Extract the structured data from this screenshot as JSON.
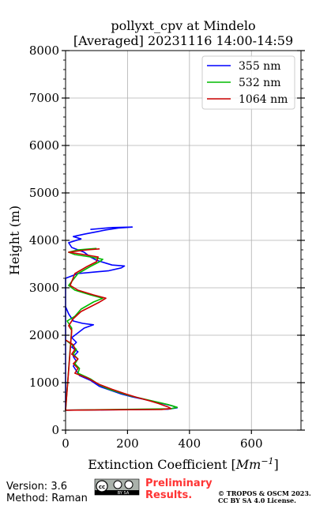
{
  "chart_data": {
    "type": "line",
    "title_line1": "pollyxt_cpv at Mindelo",
    "title_line2": "[Averaged] 20231116 14:00-14:59",
    "xlabel": "Extinction Coefficient [",
    "xlabel_unit": "Mm",
    "xlabel_exp": "−1",
    "xlabel_close": "]",
    "ylabel": "Height (m)",
    "xlim": [
      0,
      760
    ],
    "ylim": [
      0,
      8000
    ],
    "xticks": [
      0,
      200,
      400,
      600
    ],
    "yticks": [
      0,
      1000,
      2000,
      3000,
      4000,
      5000,
      6000,
      7000,
      8000
    ],
    "grid": true,
    "legend_position": "top-right",
    "series": [
      {
        "name": "355 nm",
        "color": "#0000ff",
        "points": [
          [
            0,
            2600
          ],
          [
            10,
            2450
          ],
          [
            25,
            2300
          ],
          [
            55,
            2250
          ],
          [
            90,
            2220
          ],
          [
            60,
            2150
          ],
          [
            40,
            2050
          ],
          [
            20,
            1950
          ],
          [
            35,
            1850
          ],
          [
            20,
            1750
          ],
          [
            40,
            1650
          ],
          [
            25,
            1550
          ],
          [
            35,
            1450
          ],
          [
            25,
            1350
          ],
          [
            35,
            1250
          ],
          [
            45,
            1150
          ],
          [
            80,
            1050
          ],
          [
            110,
            920
          ],
          [
            150,
            830
          ],
          [
            180,
            760
          ],
          [
            215,
            700
          ],
          [
            260,
            640
          ],
          [
            300,
            580
          ],
          [
            345,
            510
          ],
          [
            360,
            470
          ],
          [
            330,
            440
          ],
          [
            0,
            420
          ],
          [
            0,
            3200
          ],
          [
            40,
            3300
          ],
          [
            90,
            3330
          ],
          [
            140,
            3360
          ],
          [
            180,
            3420
          ],
          [
            190,
            3460
          ],
          [
            150,
            3480
          ],
          [
            130,
            3520
          ],
          [
            100,
            3580
          ],
          [
            80,
            3650
          ],
          [
            60,
            3750
          ],
          [
            20,
            3850
          ],
          [
            10,
            3950
          ],
          [
            50,
            4030
          ],
          [
            25,
            4080
          ],
          [
            60,
            4130
          ],
          [
            100,
            4180
          ],
          [
            130,
            4220
          ],
          [
            170,
            4260
          ],
          [
            215,
            4280
          ],
          [
            150,
            4270
          ],
          [
            80,
            4230
          ]
        ]
      },
      {
        "name": "532 nm",
        "color": "#00bb00",
        "points": [
          [
            0,
            1900
          ],
          [
            20,
            1800
          ],
          [
            35,
            1700
          ],
          [
            25,
            1600
          ],
          [
            40,
            1500
          ],
          [
            30,
            1400
          ],
          [
            45,
            1300
          ],
          [
            40,
            1200
          ],
          [
            80,
            1080
          ],
          [
            110,
            950
          ],
          [
            140,
            860
          ],
          [
            180,
            780
          ],
          [
            210,
            720
          ],
          [
            250,
            660
          ],
          [
            290,
            600
          ],
          [
            330,
            540
          ],
          [
            360,
            480
          ],
          [
            340,
            450
          ],
          [
            0,
            420
          ],
          [
            20,
            2150
          ],
          [
            5,
            2300
          ],
          [
            30,
            2400
          ],
          [
            50,
            2550
          ],
          [
            90,
            2700
          ],
          [
            120,
            2780
          ],
          [
            80,
            2850
          ],
          [
            30,
            2950
          ],
          [
            10,
            3050
          ],
          [
            40,
            3300
          ],
          [
            80,
            3450
          ],
          [
            110,
            3550
          ],
          [
            120,
            3600
          ],
          [
            80,
            3650
          ],
          [
            30,
            3700
          ],
          [
            10,
            3750
          ],
          [
            40,
            3800
          ],
          [
            100,
            3830
          ]
        ]
      },
      {
        "name": "1064 nm",
        "color": "#cc0000",
        "points": [
          [
            0,
            1900
          ],
          [
            25,
            1800
          ],
          [
            30,
            1700
          ],
          [
            20,
            1600
          ],
          [
            40,
            1500
          ],
          [
            25,
            1400
          ],
          [
            40,
            1300
          ],
          [
            30,
            1200
          ],
          [
            70,
            1100
          ],
          [
            110,
            960
          ],
          [
            150,
            860
          ],
          [
            190,
            770
          ],
          [
            230,
            690
          ],
          [
            270,
            620
          ],
          [
            300,
            560
          ],
          [
            330,
            490
          ],
          [
            340,
            455
          ],
          [
            310,
            435
          ],
          [
            0,
            420
          ],
          [
            20,
            2100
          ],
          [
            10,
            2200
          ],
          [
            25,
            2350
          ],
          [
            50,
            2500
          ],
          [
            80,
            2600
          ],
          [
            110,
            2700
          ],
          [
            130,
            2780
          ],
          [
            90,
            2850
          ],
          [
            40,
            2950
          ],
          [
            15,
            3050
          ],
          [
            30,
            3300
          ],
          [
            70,
            3450
          ],
          [
            100,
            3550
          ],
          [
            105,
            3650
          ],
          [
            60,
            3700
          ],
          [
            10,
            3750
          ],
          [
            70,
            3800
          ],
          [
            110,
            3820
          ]
        ]
      }
    ]
  },
  "footer": {
    "version": "Version: 3.6",
    "method": "Method: Raman",
    "prelim_line1": "Preliminary",
    "prelim_line2": "Results.",
    "copyright_line1": "© TROPOS & OSCM 2023.",
    "copyright_line2": "CC BY SA 4.0 License."
  },
  "license_badge": {
    "icon": "cc-by-sa-icon",
    "text": "BY SA"
  }
}
